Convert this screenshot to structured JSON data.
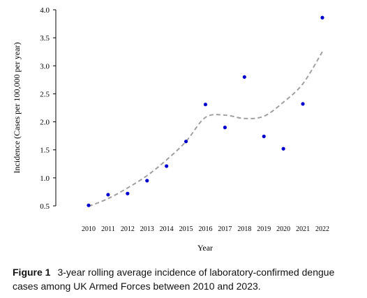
{
  "chart_data": {
    "type": "scatter",
    "xlabel": "Year",
    "ylabel": "Incidence (Cases per 100,000 per year)",
    "ylim": [
      0.5,
      4.0
    ],
    "yticks": [
      "0.5",
      "1.0",
      "1.5",
      "2.0",
      "2.5",
      "3.0",
      "3.5",
      "4.0"
    ],
    "x": [
      2010,
      2011,
      2012,
      2013,
      2014,
      2015,
      2016,
      2017,
      2018,
      2019,
      2020,
      2021,
      2022
    ],
    "xtick_labels": [
      "2010",
      "2011",
      "2012",
      "2013",
      "2014",
      "2015",
      "2016",
      "2017",
      "2018",
      "2019",
      "2020",
      "2021",
      "2022"
    ],
    "series": [
      {
        "values": [
          0.51,
          0.7,
          0.72,
          0.95,
          1.21,
          1.65,
          2.31,
          1.9,
          2.8,
          1.74,
          1.52,
          2.32,
          3.86
        ],
        "color": "#0000cc",
        "marker": "dot"
      }
    ],
    "trend": {
      "style": "dashed",
      "color": "#a0a0a0",
      "x": [
        2010,
        2011,
        2012,
        2013,
        2014,
        2015,
        2016,
        2017,
        2018,
        2019,
        2020,
        2021,
        2022
      ],
      "values": [
        0.49,
        0.63,
        0.82,
        1.04,
        1.32,
        1.65,
        2.08,
        2.12,
        2.06,
        2.1,
        2.35,
        2.68,
        3.25
      ]
    },
    "grid": false,
    "legend": "none"
  },
  "caption": {
    "label": "Figure 1",
    "text": "3-year rolling average incidence of laboratory-confirmed dengue cases among UK Armed Forces between 2010 and 2023."
  }
}
